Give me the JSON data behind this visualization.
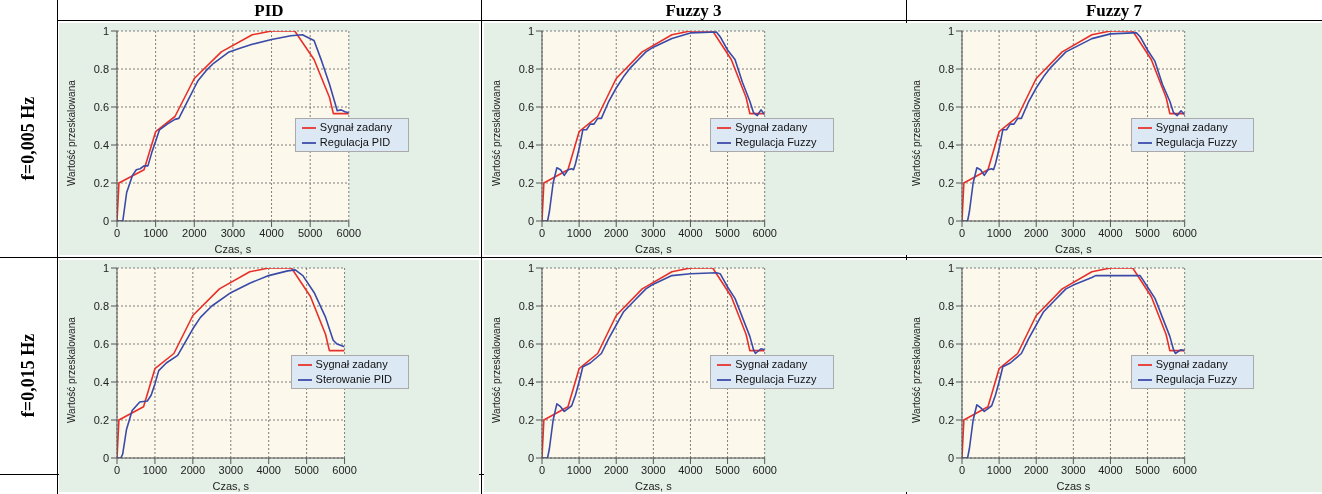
{
  "chart_data": [
    {
      "type": "line",
      "title": "PID",
      "annotations": [
        "f=0,005 Hz"
      ],
      "xlabel": "Czas, s",
      "ylabel": "Wartość przeskalowana",
      "xlim": [
        0,
        6000
      ],
      "xticks": [
        0,
        1000,
        2000,
        3000,
        4000,
        5000,
        6000
      ],
      "ylim": [
        0,
        1
      ],
      "yticks": [
        0,
        0.2,
        0.4,
        0.6,
        0.8,
        1
      ],
      "grid": true,
      "legend": "right",
      "series": [
        {
          "name": "Sygnał zadany",
          "color": "#e8302a",
          "x": [
            0,
            50,
            700,
            1000,
            1500,
            2000,
            2700,
            3500,
            4000,
            4600,
            5100,
            5500,
            5600,
            6000
          ],
          "values": [
            0,
            0.2,
            0.27,
            0.47,
            0.55,
            0.75,
            0.89,
            0.98,
            1,
            1,
            0.85,
            0.65,
            0.565,
            0.565
          ]
        },
        {
          "name": "Regulacja PID",
          "color": "#3a4aa8",
          "x": [
            0,
            150,
            250,
            400,
            500,
            600,
            700,
            800,
            900,
            1000,
            1100,
            1300,
            1500,
            1600,
            1800,
            2000,
            2100,
            2300,
            2500,
            2700,
            2900,
            3200,
            3500,
            4000,
            4500,
            4800,
            4900,
            5100,
            5300,
            5500,
            5600,
            5700,
            5800,
            5900,
            6000
          ],
          "values": [
            0,
            0,
            0.15,
            0.24,
            0.27,
            0.275,
            0.29,
            0.29,
            0.36,
            0.42,
            0.48,
            0.51,
            0.535,
            0.54,
            0.62,
            0.7,
            0.74,
            0.79,
            0.83,
            0.86,
            0.89,
            0.91,
            0.93,
            0.955,
            0.975,
            0.98,
            0.97,
            0.95,
            0.84,
            0.72,
            0.65,
            0.58,
            0.585,
            0.575,
            0.57
          ]
        }
      ]
    },
    {
      "type": "line",
      "title": "Fuzzy 3",
      "xlabel": "Czas, s",
      "ylabel": "Wartość przeskalowana",
      "xlim": [
        0,
        6000
      ],
      "xticks": [
        0,
        1000,
        2000,
        3000,
        4000,
        5000,
        6000
      ],
      "ylim": [
        0,
        1
      ],
      "yticks": [
        0,
        0.2,
        0.4,
        0.6,
        0.8,
        1
      ],
      "grid": true,
      "legend": "right",
      "series": [
        {
          "name": "Sygnał zadany",
          "color": "#e8302a",
          "x": [
            0,
            50,
            700,
            1000,
            1500,
            2000,
            2700,
            3500,
            4000,
            4600,
            5100,
            5500,
            5600,
            6000
          ],
          "values": [
            0,
            0.2,
            0.27,
            0.47,
            0.55,
            0.75,
            0.89,
            0.98,
            1,
            1,
            0.85,
            0.65,
            0.565,
            0.565
          ]
        },
        {
          "name": "Regulacja Fuzzy",
          "color": "#3a4aa8",
          "x": [
            0,
            150,
            200,
            300,
            400,
            500,
            600,
            700,
            800,
            850,
            900,
            1000,
            1100,
            1200,
            1300,
            1400,
            1500,
            1600,
            1800,
            2000,
            2200,
            2400,
            2600,
            2800,
            3000,
            3500,
            4000,
            4700,
            4800,
            5000,
            5200,
            5400,
            5600,
            5700,
            5800,
            5900,
            6000
          ],
          "values": [
            0,
            0,
            0.05,
            0.2,
            0.28,
            0.27,
            0.24,
            0.27,
            0.275,
            0.27,
            0.3,
            0.38,
            0.48,
            0.48,
            0.51,
            0.51,
            0.54,
            0.54,
            0.63,
            0.7,
            0.76,
            0.81,
            0.85,
            0.89,
            0.915,
            0.96,
            0.99,
            0.995,
            0.97,
            0.9,
            0.85,
            0.73,
            0.63,
            0.57,
            0.555,
            0.585,
            0.56
          ]
        }
      ]
    },
    {
      "type": "line",
      "title": "Fuzzy 7",
      "xlabel": "Czas, s",
      "ylabel": "Wartość przeskalowana",
      "xlim": [
        0,
        6000
      ],
      "xticks": [
        0,
        1000,
        2000,
        3000,
        4000,
        5000,
        6000
      ],
      "ylim": [
        0,
        1
      ],
      "yticks": [
        0,
        0.2,
        0.4,
        0.6,
        0.8,
        1
      ],
      "grid": true,
      "legend": "right",
      "series": [
        {
          "name": "Sygnał zadany",
          "color": "#e8302a",
          "x": [
            0,
            50,
            700,
            1000,
            1500,
            2000,
            2700,
            3500,
            4000,
            4600,
            5100,
            5500,
            5600,
            6000
          ],
          "values": [
            0,
            0.2,
            0.27,
            0.47,
            0.55,
            0.75,
            0.89,
            0.98,
            1,
            1,
            0.85,
            0.65,
            0.565,
            0.565
          ]
        },
        {
          "name": "Regulacja Fuzzy",
          "color": "#3a4aa8",
          "x": [
            0,
            150,
            200,
            300,
            400,
            500,
            600,
            700,
            800,
            850,
            900,
            1000,
            1100,
            1200,
            1300,
            1400,
            1500,
            1600,
            1800,
            2000,
            2200,
            2400,
            2600,
            2800,
            3000,
            3500,
            4000,
            4600,
            4700,
            4800,
            5000,
            5200,
            5400,
            5600,
            5700,
            5800,
            5900,
            6000
          ],
          "values": [
            0,
            0,
            0.05,
            0.2,
            0.28,
            0.27,
            0.24,
            0.27,
            0.275,
            0.27,
            0.3,
            0.38,
            0.48,
            0.48,
            0.51,
            0.51,
            0.54,
            0.54,
            0.63,
            0.7,
            0.76,
            0.81,
            0.85,
            0.89,
            0.91,
            0.96,
            0.985,
            0.99,
            0.99,
            0.97,
            0.9,
            0.84,
            0.72,
            0.63,
            0.57,
            0.555,
            0.58,
            0.56
          ]
        }
      ]
    },
    {
      "type": "line",
      "annotations": [
        "f=0,015 Hz"
      ],
      "xlabel": "Czas, s",
      "ylabel": "Wartość przeskalowana",
      "xlim": [
        0,
        6000
      ],
      "xticks": [
        0,
        1000,
        2000,
        3000,
        4000,
        5000,
        6000
      ],
      "ylim": [
        0,
        1
      ],
      "yticks": [
        0,
        0.2,
        0.4,
        0.6,
        0.8,
        1
      ],
      "grid": true,
      "legend": "right",
      "series": [
        {
          "name": "Sygnał zadany",
          "color": "#e8302a",
          "x": [
            0,
            50,
            700,
            1000,
            1500,
            2000,
            2700,
            3500,
            4000,
            4600,
            5100,
            5500,
            5600,
            6000
          ],
          "values": [
            0,
            0.2,
            0.27,
            0.47,
            0.55,
            0.75,
            0.89,
            0.98,
            1,
            1,
            0.85,
            0.65,
            0.565,
            0.565
          ]
        },
        {
          "name": "Sterowanie PID",
          "color": "#3a4aa8",
          "x": [
            0,
            100,
            150,
            250,
            400,
            600,
            800,
            900,
            1000,
            1100,
            1300,
            1600,
            1800,
            2000,
            2200,
            2500,
            3000,
            3500,
            4000,
            4500,
            4700,
            4900,
            5200,
            5500,
            5700,
            5800,
            6000
          ],
          "values": [
            0,
            0,
            0.02,
            0.15,
            0.25,
            0.295,
            0.3,
            0.33,
            0.39,
            0.46,
            0.5,
            0.54,
            0.61,
            0.68,
            0.74,
            0.8,
            0.87,
            0.92,
            0.96,
            0.985,
            0.99,
            0.96,
            0.87,
            0.74,
            0.62,
            0.6,
            0.585
          ]
        }
      ]
    },
    {
      "type": "line",
      "xlabel": "Czas, s",
      "ylabel": "Wartość przeskalowana",
      "xlim": [
        0,
        6000
      ],
      "xticks": [
        0,
        1000,
        2000,
        3000,
        4000,
        5000,
        6000
      ],
      "ylim": [
        0,
        1
      ],
      "yticks": [
        0,
        0.2,
        0.4,
        0.6,
        0.8,
        1
      ],
      "grid": true,
      "legend": "right",
      "series": [
        {
          "name": "Sygnał zadany",
          "color": "#e8302a",
          "x": [
            0,
            50,
            700,
            1000,
            1500,
            2000,
            2700,
            3500,
            4000,
            4600,
            5100,
            5500,
            5600,
            6000
          ],
          "values": [
            0,
            0.2,
            0.27,
            0.47,
            0.55,
            0.75,
            0.89,
            0.98,
            1,
            1,
            0.85,
            0.65,
            0.565,
            0.565
          ]
        },
        {
          "name": "Regulacja Fuzzy",
          "color": "#3a4aa8",
          "x": [
            0,
            150,
            200,
            300,
            400,
            500,
            600,
            700,
            800,
            900,
            1000,
            1100,
            1300,
            1600,
            1800,
            2000,
            2200,
            2500,
            2800,
            3000,
            3500,
            4000,
            4700,
            4800,
            5000,
            5200,
            5400,
            5600,
            5700,
            5750,
            5900,
            6000
          ],
          "values": [
            0,
            0,
            0.05,
            0.2,
            0.285,
            0.27,
            0.245,
            0.26,
            0.275,
            0.33,
            0.4,
            0.48,
            0.5,
            0.55,
            0.63,
            0.7,
            0.77,
            0.83,
            0.89,
            0.915,
            0.96,
            0.97,
            0.975,
            0.97,
            0.9,
            0.84,
            0.74,
            0.64,
            0.57,
            0.55,
            0.575,
            0.57
          ]
        }
      ]
    },
    {
      "type": "line",
      "xlabel": "Czas s",
      "ylabel": "Wartość przeskalowana",
      "xlim": [
        0,
        6000
      ],
      "xticks": [
        0,
        1000,
        2000,
        3000,
        4000,
        5000,
        6000
      ],
      "ylim": [
        0,
        1
      ],
      "yticks": [
        0,
        0.2,
        0.4,
        0.6,
        0.8,
        1
      ],
      "grid": true,
      "legend": "right",
      "series": [
        {
          "name": "Sygnał zadany",
          "color": "#e8302a",
          "x": [
            0,
            50,
            700,
            1000,
            1500,
            2000,
            2700,
            3500,
            4000,
            4600,
            5100,
            5500,
            5600,
            6000
          ],
          "values": [
            0,
            0.2,
            0.27,
            0.47,
            0.55,
            0.75,
            0.89,
            0.98,
            1,
            1,
            0.85,
            0.65,
            0.565,
            0.565
          ]
        },
        {
          "name": "Regulacja Fuzzy",
          "color": "#3a4aa8",
          "x": [
            0,
            150,
            200,
            300,
            400,
            500,
            600,
            700,
            800,
            900,
            1000,
            1100,
            1300,
            1600,
            1800,
            2000,
            2200,
            2500,
            2800,
            3000,
            3500,
            3600,
            4800,
            5000,
            5200,
            5400,
            5600,
            5700,
            5750,
            5900,
            6000
          ],
          "values": [
            0,
            0,
            0.05,
            0.2,
            0.28,
            0.265,
            0.245,
            0.26,
            0.275,
            0.33,
            0.4,
            0.48,
            0.5,
            0.55,
            0.63,
            0.7,
            0.77,
            0.83,
            0.89,
            0.91,
            0.95,
            0.96,
            0.96,
            0.9,
            0.84,
            0.74,
            0.64,
            0.57,
            0.55,
            0.57,
            0.565
          ]
        }
      ]
    }
  ]
}
